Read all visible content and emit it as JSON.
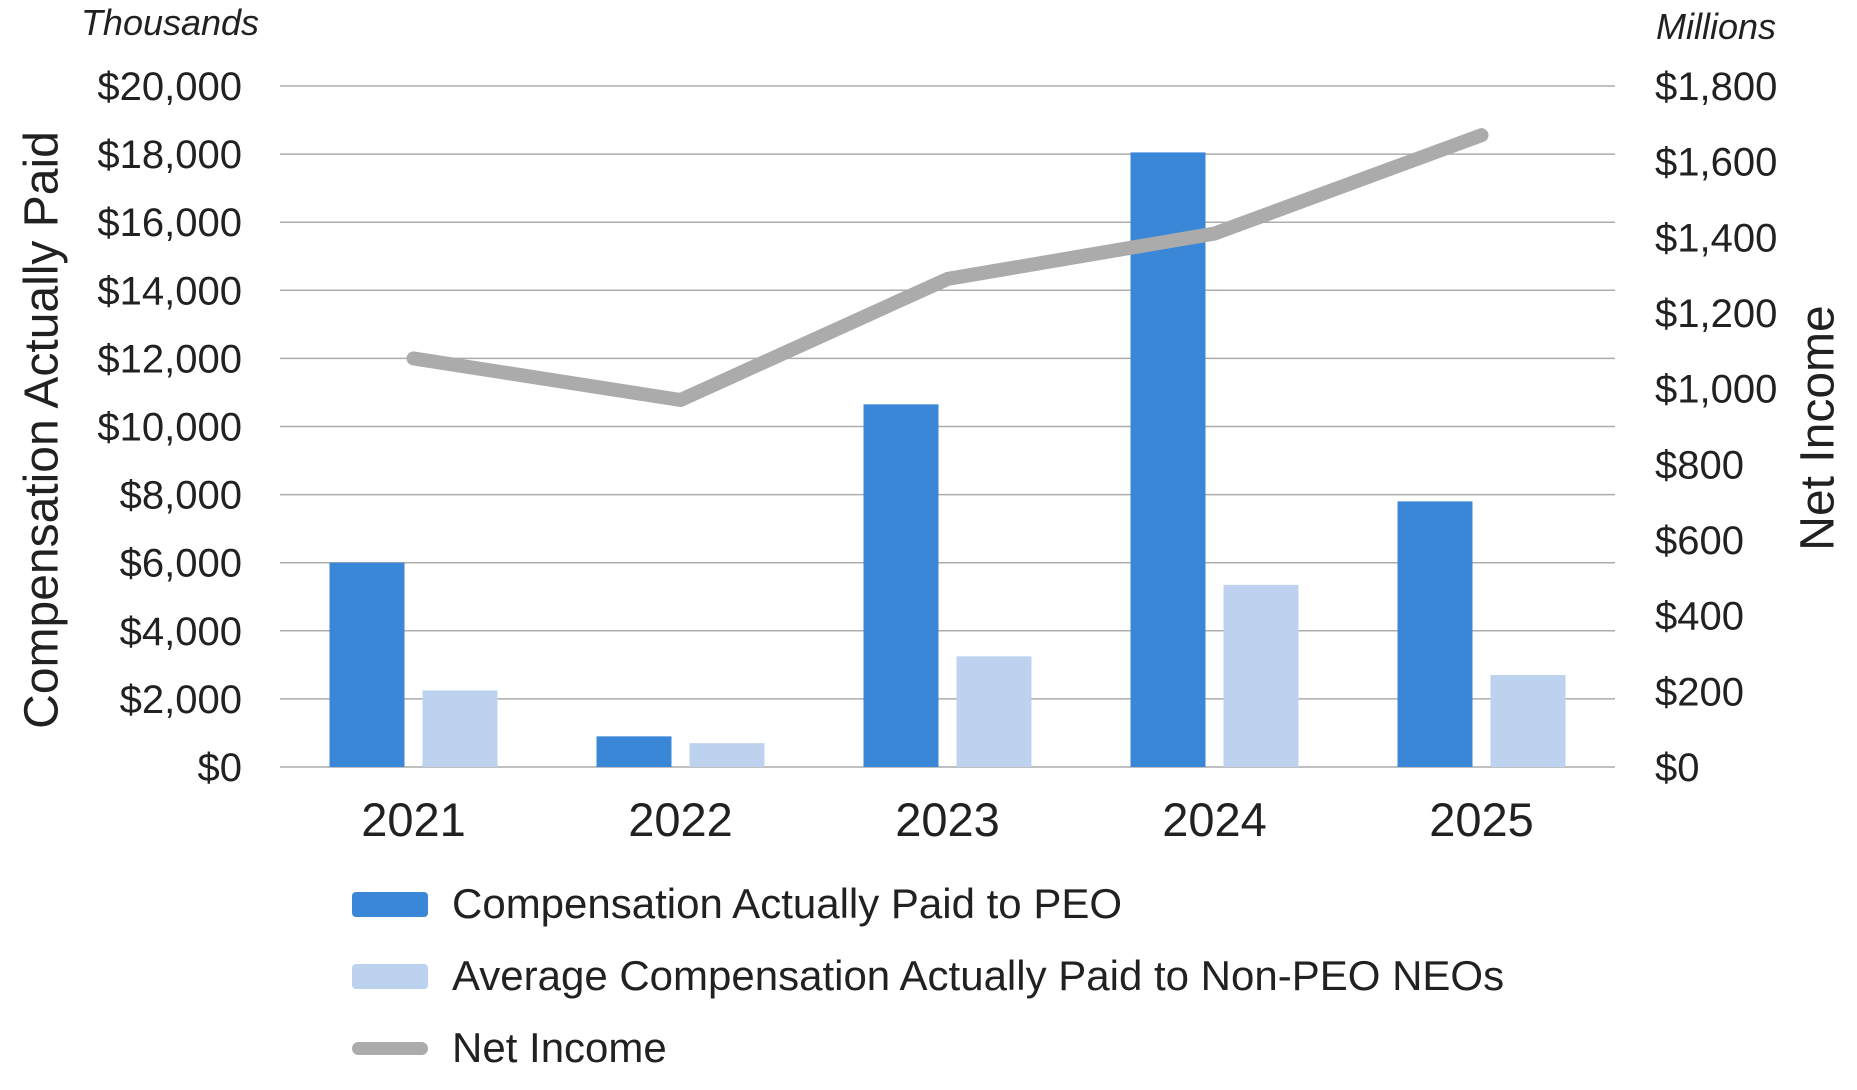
{
  "chart_data": {
    "type": "combo-bar-line",
    "categories": [
      "2021",
      "2022",
      "2023",
      "2024",
      "2025"
    ],
    "series": [
      {
        "name": "Compensation Actually Paid to PEO",
        "type": "bar",
        "axis": "left",
        "color": "#3B87D7",
        "values": [
          6000,
          900,
          10650,
          18050,
          7800
        ]
      },
      {
        "name": "Average Compensation Actually Paid to Non-PEO NEOs",
        "type": "bar",
        "axis": "left",
        "color": "#BCD2EE",
        "values": [
          2250,
          700,
          3250,
          5350,
          2700
        ]
      },
      {
        "name": "Net Income",
        "type": "line",
        "axis": "right",
        "color": "#ABABAB",
        "values": [
          1080,
          970,
          1290,
          1410,
          1670
        ]
      }
    ],
    "left_axis": {
      "title": "Compensation Actually Paid",
      "unit": "Thousands",
      "min": 0,
      "max": 20000,
      "step": 2000,
      "tick_labels": [
        "$0",
        "$2,000",
        "$4,000",
        "$6,000",
        "$8,000",
        "$10,000",
        "$12,000",
        "$14,000",
        "$16,000",
        "$18,000",
        "$20,000"
      ]
    },
    "right_axis": {
      "title": "Net Income",
      "unit": "Millions",
      "min": 0,
      "max": 1800,
      "step": 200,
      "tick_labels": [
        "$0",
        "$200",
        "$400",
        "$600",
        "$800",
        "$1,000",
        "$1,200",
        "$1,400",
        "$1,600",
        "$1,800"
      ]
    },
    "grid": true,
    "legend_position": "bottom-left",
    "colors": {
      "gridline": "#ACACAC",
      "text": "#232120",
      "background": "#FFFFFF"
    }
  }
}
